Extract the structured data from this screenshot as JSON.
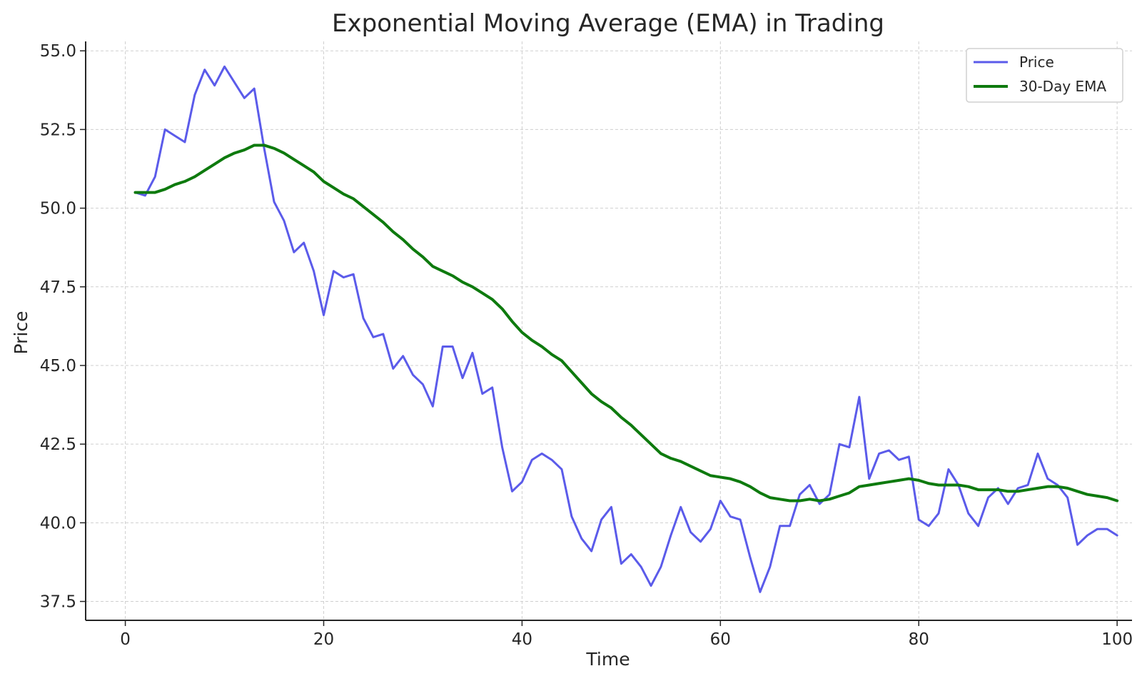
{
  "chart_data": {
    "type": "line",
    "title": "Exponential Moving Average (EMA) in Trading",
    "xlabel": "Time",
    "ylabel": "Price",
    "xlim": [
      -4,
      101.5
    ],
    "ylim": [
      36.9,
      55.3
    ],
    "xticks": [
      0,
      20,
      40,
      60,
      80,
      100
    ],
    "xtick_labels": [
      "0",
      "20",
      "40",
      "60",
      "80",
      "100"
    ],
    "yticks": [
      37.5,
      40.0,
      42.5,
      45.0,
      47.5,
      50.0,
      52.5,
      55.0
    ],
    "ytick_labels": [
      "37.5",
      "40.0",
      "42.5",
      "45.0",
      "47.5",
      "50.0",
      "52.5",
      "55.0"
    ],
    "grid": true,
    "legend_position": "top-right",
    "x": [
      1,
      2,
      3,
      4,
      5,
      6,
      7,
      8,
      9,
      10,
      11,
      12,
      13,
      14,
      15,
      16,
      17,
      18,
      19,
      20,
      21,
      22,
      23,
      24,
      25,
      26,
      27,
      28,
      29,
      30,
      31,
      32,
      33,
      34,
      35,
      36,
      37,
      38,
      39,
      40,
      41,
      42,
      43,
      44,
      45,
      46,
      47,
      48,
      49,
      50,
      51,
      52,
      53,
      54,
      55,
      56,
      57,
      58,
      59,
      60,
      61,
      62,
      63,
      64,
      65,
      66,
      67,
      68,
      69,
      70,
      71,
      72,
      73,
      74,
      75,
      76,
      77,
      78,
      79,
      80,
      81,
      82,
      83,
      84,
      85,
      86,
      87,
      88,
      89,
      90,
      91,
      92,
      93,
      94,
      95,
      96,
      97,
      98,
      99,
      100
    ],
    "series": [
      {
        "name": "Price",
        "color": "#5b5bea",
        "values": [
          50.5,
          50.4,
          51.0,
          52.5,
          52.3,
          52.1,
          53.6,
          54.4,
          53.9,
          54.5,
          54.0,
          53.5,
          53.8,
          51.9,
          50.2,
          49.6,
          48.6,
          48.9,
          48.0,
          46.6,
          48.0,
          47.8,
          47.9,
          46.5,
          45.9,
          46.0,
          44.9,
          45.3,
          44.7,
          44.4,
          43.7,
          45.6,
          45.6,
          44.6,
          45.4,
          44.1,
          44.3,
          42.4,
          41.0,
          41.3,
          42.0,
          42.2,
          42.0,
          41.7,
          40.2,
          39.5,
          39.1,
          40.1,
          40.5,
          38.7,
          39.0,
          38.6,
          38.0,
          38.6,
          39.6,
          40.5,
          39.7,
          39.4,
          39.8,
          40.7,
          40.2,
          40.1,
          38.9,
          37.8,
          38.6,
          39.9,
          39.9,
          40.9,
          41.2,
          40.6,
          40.9,
          42.5,
          42.4,
          44.0,
          41.4,
          42.2,
          42.3,
          42.0,
          42.1,
          40.1,
          39.9,
          40.3,
          41.7,
          41.2,
          40.3,
          39.9,
          40.8,
          41.1,
          40.6,
          41.1,
          41.2,
          42.2,
          41.4,
          41.2,
          40.8,
          39.3,
          39.6,
          39.8,
          39.8,
          39.6
        ]
      },
      {
        "name": "30-Day EMA",
        "color": "#0e7a0e",
        "values": [
          50.5,
          50.5,
          50.5,
          50.6,
          50.75,
          50.85,
          51.0,
          51.2,
          51.4,
          51.6,
          51.75,
          51.85,
          52.0,
          52.0,
          51.9,
          51.75,
          51.55,
          51.35,
          51.15,
          50.85,
          50.65,
          50.45,
          50.3,
          50.05,
          49.8,
          49.55,
          49.25,
          49.0,
          48.7,
          48.45,
          48.15,
          48.0,
          47.85,
          47.65,
          47.5,
          47.3,
          47.1,
          46.8,
          46.4,
          46.05,
          45.8,
          45.6,
          45.35,
          45.15,
          44.8,
          44.45,
          44.1,
          43.85,
          43.65,
          43.35,
          43.1,
          42.8,
          42.5,
          42.2,
          42.05,
          41.95,
          41.8,
          41.65,
          41.5,
          41.45,
          41.4,
          41.3,
          41.15,
          40.95,
          40.8,
          40.75,
          40.7,
          40.7,
          40.75,
          40.7,
          40.75,
          40.85,
          40.95,
          41.15,
          41.2,
          41.25,
          41.3,
          41.35,
          41.4,
          41.35,
          41.25,
          41.2,
          41.2,
          41.2,
          41.15,
          41.05,
          41.05,
          41.05,
          41.0,
          41.0,
          41.05,
          41.1,
          41.15,
          41.15,
          41.1,
          41.0,
          40.9,
          40.85,
          40.8,
          40.7
        ]
      }
    ]
  }
}
